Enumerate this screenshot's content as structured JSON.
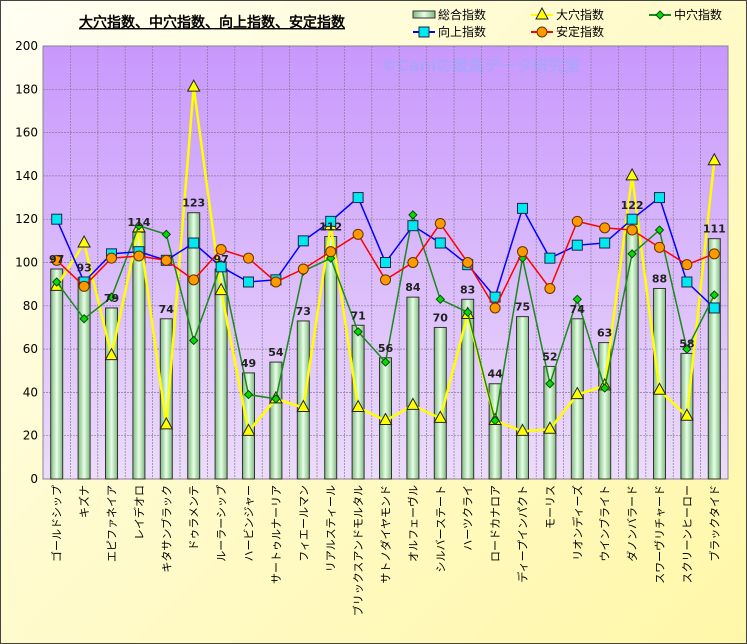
{
  "chart_data": {
    "type": "bar",
    "title": "大穴指数、中穴指数、向上指数、安定指数",
    "watermark": "©Caniの競馬データ研究室",
    "ylim": [
      0,
      200
    ],
    "yticks": [
      "0",
      "20",
      "40",
      "60",
      "80",
      "100",
      "120",
      "140",
      "160",
      "180",
      "200"
    ],
    "grid": true,
    "legend_position": "top-right",
    "categories": [
      "ゴールドシップ",
      "キズナ",
      "エピファネイア",
      "レイデオロ",
      "キタサンブラック",
      "ドゥラメンテ",
      "ルーラーシップ",
      "ハービンジャー",
      "サートゥルナーリア",
      "フィエールマン",
      "リアルスティール",
      "ブリックスアンドモルタル",
      "サトノダイヤモンド",
      "オルフェーヴル",
      "シルバーステート",
      "ハーツクライ",
      "ロードカナロア",
      "ディープインパクト",
      "モーリス",
      "リオンディーズ",
      "ウインブライト",
      "ダノンバラード",
      "スワーヴリチャード",
      "スクリーンヒーロー",
      "ブラックタイド"
    ],
    "series": [
      {
        "name": "総合指数",
        "type": "bar",
        "color": "#b8e8b8",
        "values": [
          97,
          93,
          79,
          114,
          74,
          123,
          97,
          49,
          54,
          73,
          112,
          71,
          56,
          84,
          70,
          83,
          44,
          75,
          52,
          74,
          63,
          122,
          88,
          58,
          111
        ]
      },
      {
        "name": "大穴指数",
        "type": "line",
        "color": "#ffff00",
        "marker": "triangle",
        "values": [
          89,
          109,
          57,
          116,
          25,
          181,
          87,
          22,
          37,
          33,
          117,
          33,
          27,
          34,
          28,
          76,
          27,
          22,
          23,
          39,
          43,
          140,
          41,
          29,
          147
        ]
      },
      {
        "name": "中穴指数",
        "type": "line",
        "color": "#1a8a1a",
        "marker": "diamond",
        "values": [
          91,
          74,
          84,
          117,
          113,
          64,
          99,
          39,
          37,
          96,
          102,
          68,
          54,
          122,
          83,
          77,
          27,
          102,
          44,
          83,
          42,
          104,
          115,
          60,
          85
        ]
      },
      {
        "name": "向上指数",
        "type": "line",
        "color": "#0000ff",
        "marker": "square",
        "values": [
          120,
          91,
          104,
          105,
          101,
          109,
          98,
          91,
          92,
          110,
          119,
          130,
          100,
          117,
          109,
          99,
          84,
          125,
          102,
          108,
          109,
          120,
          130,
          91,
          79
        ]
      },
      {
        "name": "安定指数",
        "type": "line",
        "color": "#ff0000",
        "marker": "circle",
        "values": [
          101,
          89,
          102,
          103,
          101,
          92,
          106,
          102,
          91,
          97,
          105,
          113,
          92,
          100,
          118,
          100,
          79,
          105,
          88,
          119,
          116,
          115,
          107,
          99,
          104
        ]
      }
    ]
  }
}
